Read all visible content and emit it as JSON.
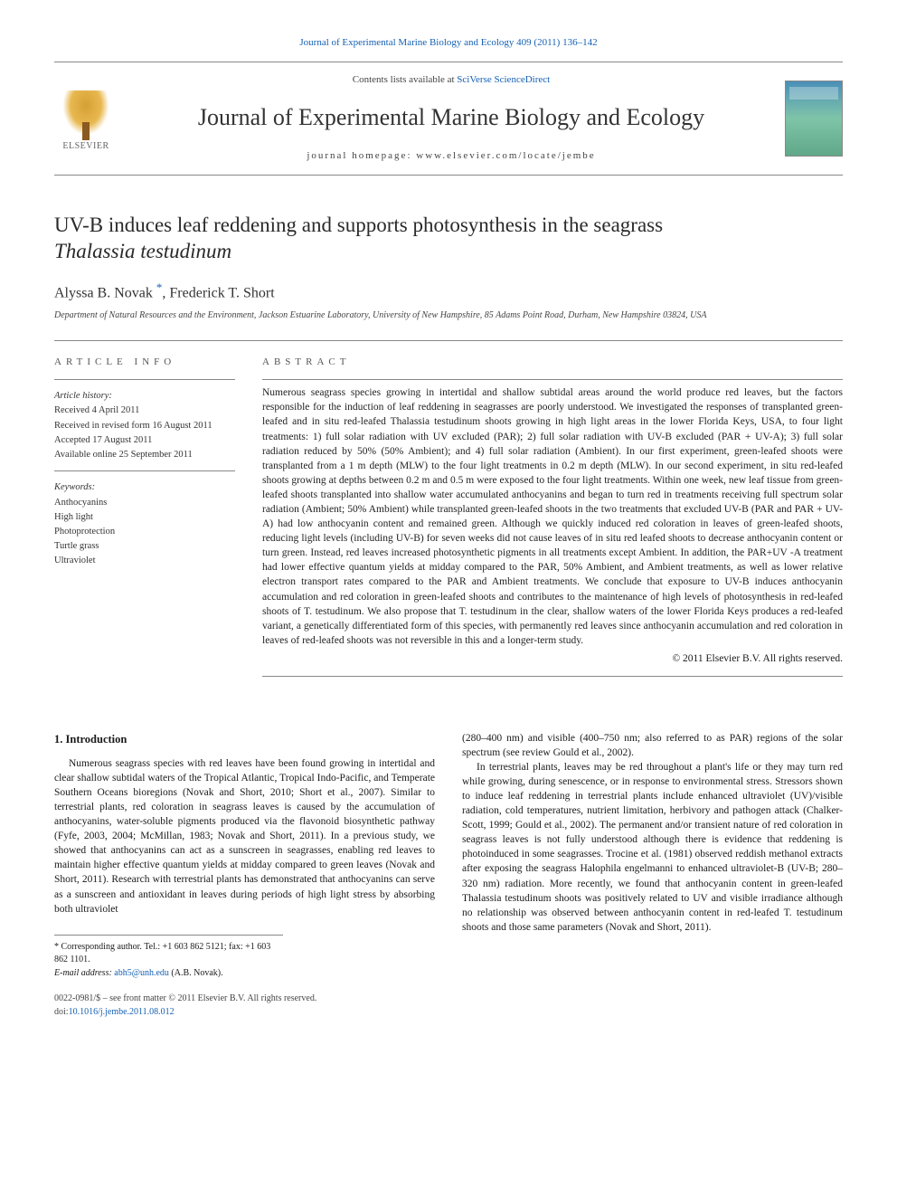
{
  "top_link": {
    "text": "Journal of Experimental Marine Biology and Ecology 409 (2011) 136–142",
    "color": "#1560b3"
  },
  "header": {
    "contents_prefix": "Contents lists available at ",
    "contents_link": "SciVerse ScienceDirect",
    "journal_name": "Journal of Experimental Marine Biology and Ecology",
    "homepage_prefix": "journal homepage: ",
    "homepage_url": "www.elsevier.com/locate/jembe",
    "elsevier_label": "ELSEVIER"
  },
  "article": {
    "title_line1": "UV-B induces leaf reddening and supports photosynthesis in the seagrass",
    "title_species": "Thalassia testudinum",
    "authors_html": "Alyssa B. Novak",
    "corresp_marker": "*",
    "author2": "Frederick T. Short",
    "affiliation": "Department of Natural Resources and the Environment, Jackson Estuarine Laboratory, University of New Hampshire, 85 Adams Point Road, Durham, New Hampshire 03824, USA"
  },
  "article_info": {
    "heading": "article info",
    "history_label": "Article history:",
    "received": "Received 4 April 2011",
    "revised": "Received in revised form 16 August 2011",
    "accepted": "Accepted 17 August 2011",
    "online": "Available online 25 September 2011",
    "keywords_label": "Keywords:",
    "keywords": [
      "Anthocyanins",
      "High light",
      "Photoprotection",
      "Turtle grass",
      "Ultraviolet"
    ]
  },
  "abstract": {
    "heading": "abstract",
    "text": "Numerous seagrass species growing in intertidal and shallow subtidal areas around the world produce red leaves, but the factors responsible for the induction of leaf reddening in seagrasses are poorly understood. We investigated the responses of transplanted green-leafed and in situ red-leafed Thalassia testudinum shoots growing in high light areas in the lower Florida Keys, USA, to four light treatments: 1) full solar radiation with UV excluded (PAR); 2) full solar radiation with UV-B excluded (PAR + UV-A); 3) full solar radiation reduced by 50% (50% Ambient); and 4) full solar radiation (Ambient). In our first experiment, green-leafed shoots were transplanted from a 1 m depth (MLW) to the four light treatments in 0.2 m depth (MLW). In our second experiment, in situ red-leafed shoots growing at depths between 0.2 m and 0.5 m were exposed to the four light treatments. Within one week, new leaf tissue from green-leafed shoots transplanted into shallow water accumulated anthocyanins and began to turn red in treatments receiving full spectrum solar radiation (Ambient; 50% Ambient) while transplanted green-leafed shoots in the two treatments that excluded UV-B (PAR and PAR + UV-A) had low anthocyanin content and remained green. Although we quickly induced red coloration in leaves of green-leafed shoots, reducing light levels (including UV-B) for seven weeks did not cause leaves of in situ red leafed shoots to decrease anthocyanin content or turn green. Instead, red leaves increased photosynthetic pigments in all treatments except Ambient. In addition, the PAR+UV -A treatment had lower effective quantum yields at midday compared to the PAR, 50% Ambient, and Ambient treatments, as well as lower relative electron transport rates compared to the PAR and Ambient treatments. We conclude that exposure to UV-B induces anthocyanin accumulation and red coloration in green-leafed shoots and contributes to the maintenance of high levels of photosynthesis in red-leafed shoots of T. testudinum. We also propose that T. testudinum in the clear, shallow waters of the lower Florida Keys produces a red-leafed variant, a genetically differentiated form of this species, with permanently red leaves since anthocyanin accumulation and red coloration in leaves of red-leafed shoots was not reversible in this and a longer-term study.",
    "copyright": "© 2011 Elsevier B.V. All rights reserved."
  },
  "body": {
    "intro_heading": "1. Introduction",
    "col1_para1": "Numerous seagrass species with red leaves have been found growing in intertidal and clear shallow subtidal waters of the Tropical Atlantic, Tropical Indo-Pacific, and Temperate Southern Oceans bioregions (Novak and Short, 2010; Short et al., 2007). Similar to terrestrial plants, red coloration in seagrass leaves is caused by the accumulation of anthocyanins, water-soluble pigments produced via the flavonoid biosynthetic pathway (Fyfe, 2003, 2004; McMillan, 1983; Novak and Short, 2011). In a previous study, we showed that anthocyanins can act as a sunscreen in seagrasses, enabling red leaves to maintain higher effective quantum yields at midday compared to green leaves (Novak and Short, 2011). Research with terrestrial plants has demonstrated that anthocyanins can serve as a sunscreen and antioxidant in leaves during periods of high light stress by absorbing both ultraviolet",
    "col2_para1": "(280–400 nm) and visible (400–750 nm; also referred to as PAR) regions of the solar spectrum (see review Gould et al., 2002).",
    "col2_para2": "In terrestrial plants, leaves may be red throughout a plant's life or they may turn red while growing, during senescence, or in response to environmental stress. Stressors shown to induce leaf reddening in terrestrial plants include enhanced ultraviolet (UV)/visible radiation, cold temperatures, nutrient limitation, herbivory and pathogen attack (Chalker-Scott, 1999; Gould et al., 2002). The permanent and/or transient nature of red coloration in seagrass leaves is not fully understood although there is evidence that reddening is photoinduced in some seagrasses. Trocine et al. (1981) observed reddish methanol extracts after exposing the seagrass Halophila engelmanni to enhanced ultraviolet-B (UV-B; 280–320 nm) radiation. More recently, we found that anthocyanin content in green-leafed Thalassia testudinum shoots was positively related to UV and visible irradiance although no relationship was observed between anthocyanin content in red-leafed T. testudinum shoots and those same parameters (Novak and Short, 2011)."
  },
  "footnote": {
    "corresp": "* Corresponding author. Tel.: +1 603 862 5121; fax: +1 603 862 1101.",
    "email_label": "E-mail address: ",
    "email": "abh5@unh.edu",
    "email_attrib": " (A.B. Novak)."
  },
  "footer": {
    "issn": "0022-0981/$ – see front matter © 2011 Elsevier B.V. All rights reserved.",
    "doi_label": "doi:",
    "doi": "10.1016/j.jembe.2011.08.012"
  },
  "colors": {
    "link": "#1560b3",
    "text": "#1a1a1a",
    "rule": "#888888",
    "background": "#ffffff"
  },
  "typography": {
    "body_fontsize": 11.5,
    "title_fontsize": 23,
    "journal_name_fontsize": 26,
    "info_fontsize": 10.5,
    "font_family": "Georgia, Times New Roman, serif"
  }
}
